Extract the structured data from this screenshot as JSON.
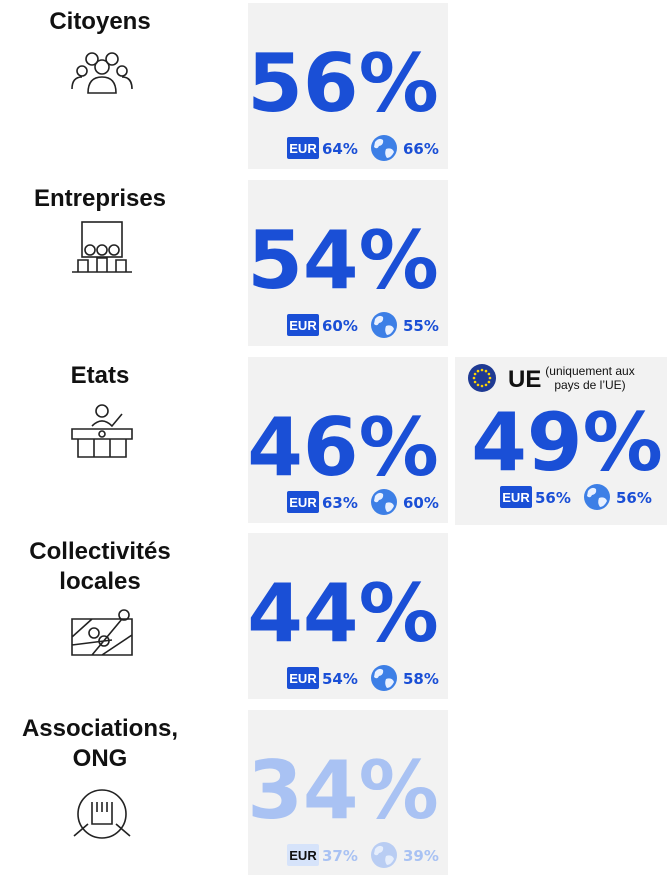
{
  "eur_label": "EUR",
  "rows": [
    {
      "label": [
        "Citoyens"
      ],
      "value": "56%",
      "eur": "64%",
      "world": "66%",
      "color": "#1a4fd6"
    },
    {
      "label": [
        "Entreprises"
      ],
      "value": "54%",
      "eur": "60%",
      "world": "55%",
      "color": "#1a4fd6"
    },
    {
      "label": [
        "Etats"
      ],
      "value": "46%",
      "eur": "63%",
      "world": "60%",
      "color": "#1a4fd6"
    },
    {
      "label": [
        "Collectivités",
        "locales"
      ],
      "value": "44%",
      "eur": "54%",
      "world": "58%",
      "color": "#1a4fd6"
    },
    {
      "label": [
        "Associations,",
        "ONG"
      ],
      "value": "34%",
      "eur": "37%",
      "world": "39%",
      "color": "#a9c2f3"
    }
  ],
  "ue": {
    "title": "UE",
    "note": [
      "(uniquement aux",
      "pays de l’UE)"
    ],
    "value": "49%",
    "eur": "56%",
    "world": "56%",
    "color": "#1a4fd6"
  }
}
